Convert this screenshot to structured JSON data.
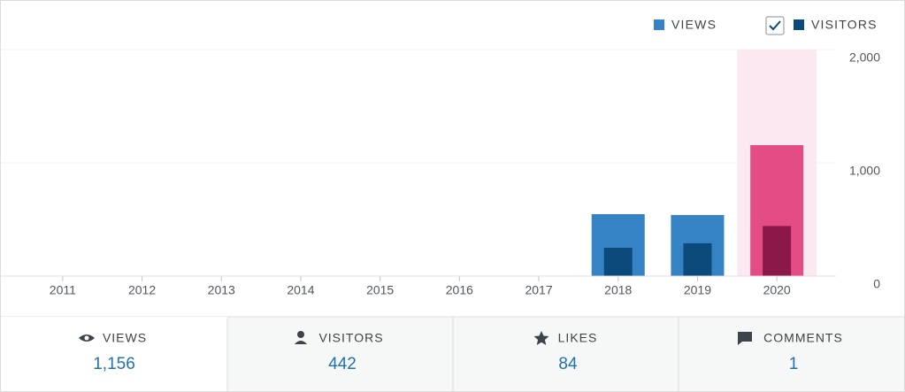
{
  "chart_data": {
    "type": "bar",
    "categories": [
      "2011",
      "2012",
      "2013",
      "2014",
      "2015",
      "2016",
      "2017",
      "2018",
      "2019",
      "2020"
    ],
    "series": [
      {
        "name": "VIEWS",
        "color": "#3582c4",
        "selected_color": "#e34c84",
        "values": [
          0,
          0,
          0,
          0,
          0,
          0,
          0,
          547,
          539,
          1156
        ]
      },
      {
        "name": "VISITORS",
        "color": "#0b4a7a",
        "selected_color": "#8c1749",
        "values": [
          0,
          0,
          0,
          0,
          0,
          0,
          0,
          250,
          289,
          442
        ]
      }
    ],
    "selected_index": 9,
    "selected_background": "#fce8f0",
    "ylim": [
      0,
      2000
    ],
    "yticks": [
      0,
      {
        "value": 1000,
        "label": "1,000"
      },
      {
        "value": 2000,
        "label": "2,000"
      }
    ],
    "grid": true
  },
  "tabs": [
    {
      "label": "VIEWS",
      "value": "1,156"
    },
    {
      "label": "VISITORS",
      "value": "442"
    },
    {
      "label": "LIKES",
      "value": "84"
    },
    {
      "label": "COMMENTS",
      "value": "1"
    }
  ]
}
